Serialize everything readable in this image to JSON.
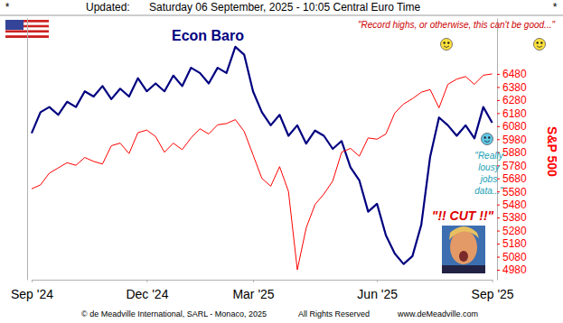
{
  "chart_data": {
    "type": "line",
    "categories": [
      "Sep '24",
      null,
      null,
      null,
      null,
      null,
      null,
      null,
      null,
      null,
      null,
      null,
      null,
      "Dec '24",
      null,
      null,
      null,
      null,
      null,
      null,
      null,
      null,
      null,
      null,
      null,
      "Mar '25",
      null,
      null,
      null,
      null,
      null,
      null,
      null,
      null,
      null,
      null,
      null,
      null,
      null,
      "Jun '25",
      null,
      null,
      null,
      null,
      null,
      null,
      null,
      null,
      null,
      null,
      null,
      null,
      "Sep '25"
    ],
    "series": [
      {
        "name": "Econ Baro",
        "color": "#000080",
        "values": [
          56,
          64,
          66,
          63,
          68,
          66,
          72,
          70,
          74,
          69,
          73,
          70,
          77,
          72,
          75,
          72,
          78,
          74,
          81,
          79,
          75,
          81,
          79,
          89,
          86,
          72,
          64,
          59,
          63,
          55,
          59,
          52,
          57,
          55,
          50,
          53,
          43,
          38,
          26,
          29,
          17,
          10,
          6,
          9,
          21,
          47,
          62,
          59,
          55,
          59,
          54,
          66,
          60
        ]
      },
      {
        "name": "S&P 500",
        "color": "#ff0000",
        "axis": "y2",
        "values": [
          5600,
          5630,
          5720,
          5760,
          5800,
          5780,
          5840,
          5810,
          5790,
          5930,
          5950,
          5870,
          6030,
          6050,
          6000,
          5880,
          5950,
          5900,
          5990,
          6060,
          6020,
          6090,
          6100,
          6130,
          6040,
          5860,
          5680,
          5620,
          5770,
          5580,
          4980,
          5300,
          5480,
          5560,
          5660,
          5880,
          5910,
          5850,
          5990,
          5980,
          6020,
          6180,
          6250,
          6290,
          6340,
          6360,
          6220,
          6400,
          6440,
          6460,
          6400,
          6470,
          6480
        ]
      }
    ],
    "ylim": [
      0,
      100
    ],
    "yticks": [],
    "y2lim": [
      4904,
      6908
    ],
    "y2ticks": [
      4980,
      5080,
      5180,
      5280,
      5380,
      5480,
      5580,
      5680,
      5780,
      5880,
      5980,
      6080,
      6180,
      6280,
      6380,
      6480
    ],
    "grid": false,
    "annotations": [
      {
        "text": "*"
      },
      {
        "text": "Updated:"
      },
      {
        "text": "Saturday 06 September, 2025 - 10:05 Central Euro Time"
      },
      {
        "text": "*"
      },
      {
        "text": "\"Record highs, or otherwise, this can't be good...\""
      },
      {
        "text": "\"Really lousy jobs data...\""
      },
      {
        "text": "\"!! CUT !!\""
      },
      {
        "text": "© de Meadville International, SARL - Monaco, 2025"
      },
      {
        "text": "All Rights Reserved"
      },
      {
        "text": "www.deMeadville.com"
      }
    ]
  }
}
